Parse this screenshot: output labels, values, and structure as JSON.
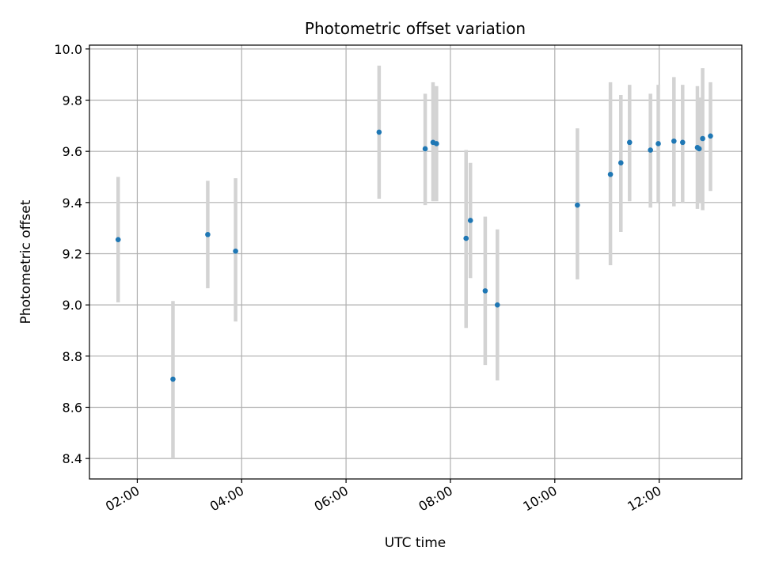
{
  "chart_data": {
    "type": "scatter",
    "title": "Photometric offset variation",
    "xlabel": "UTC time",
    "ylabel": "Photometric offset",
    "x_unit": "hours UTC",
    "xlim": [
      "01:05",
      "13:35"
    ],
    "ylim": [
      8.32,
      10.015
    ],
    "x_ticks": [
      "02:00",
      "04:00",
      "06:00",
      "08:00",
      "10:00",
      "12:00"
    ],
    "y_ticks": [
      "8.4",
      "8.6",
      "8.8",
      "9.0",
      "9.2",
      "9.4",
      "9.6",
      "9.8",
      "10.0"
    ],
    "grid": true,
    "marker_color": "#1f77b4",
    "errorbar_color": "#d3d3d3",
    "series": [
      {
        "points": [
          {
            "x": "01:38",
            "y": 9.255,
            "ylo": 9.01,
            "yhi": 9.5
          },
          {
            "x": "02:41",
            "y": 8.71,
            "ylo": 8.4,
            "yhi": 9.015
          },
          {
            "x": "03:21",
            "y": 9.275,
            "ylo": 9.065,
            "yhi": 9.485
          },
          {
            "x": "03:53",
            "y": 9.21,
            "ylo": 8.935,
            "yhi": 9.495
          },
          {
            "x": "06:38",
            "y": 9.675,
            "ylo": 9.415,
            "yhi": 9.935
          },
          {
            "x": "07:31",
            "y": 9.61,
            "ylo": 9.39,
            "yhi": 9.825
          },
          {
            "x": "07:40",
            "y": 9.635,
            "ylo": 9.405,
            "yhi": 9.87
          },
          {
            "x": "07:44",
            "y": 9.63,
            "ylo": 9.405,
            "yhi": 9.855
          },
          {
            "x": "08:18",
            "y": 9.26,
            "ylo": 8.91,
            "yhi": 9.605
          },
          {
            "x": "08:23",
            "y": 9.33,
            "ylo": 9.105,
            "yhi": 9.555
          },
          {
            "x": "08:40",
            "y": 9.055,
            "ylo": 8.765,
            "yhi": 9.345
          },
          {
            "x": "08:54",
            "y": 9.0,
            "ylo": 8.705,
            "yhi": 9.295
          },
          {
            "x": "10:26",
            "y": 9.39,
            "ylo": 9.1,
            "yhi": 9.69
          },
          {
            "x": "11:04",
            "y": 9.51,
            "ylo": 9.155,
            "yhi": 9.87
          },
          {
            "x": "11:16",
            "y": 9.555,
            "ylo": 9.285,
            "yhi": 9.82
          },
          {
            "x": "11:26",
            "y": 9.635,
            "ylo": 9.405,
            "yhi": 9.86
          },
          {
            "x": "11:50",
            "y": 9.605,
            "ylo": 9.38,
            "yhi": 9.825
          },
          {
            "x": "11:59",
            "y": 9.63,
            "ylo": 9.4,
            "yhi": 9.86
          },
          {
            "x": "12:17",
            "y": 9.64,
            "ylo": 9.385,
            "yhi": 9.89
          },
          {
            "x": "12:27",
            "y": 9.635,
            "ylo": 9.4,
            "yhi": 9.86
          },
          {
            "x": "12:44",
            "y": 9.615,
            "ylo": 9.375,
            "yhi": 9.855
          },
          {
            "x": "12:46",
            "y": 9.61,
            "ylo": 9.4,
            "yhi": 9.81
          },
          {
            "x": "12:50",
            "y": 9.65,
            "ylo": 9.37,
            "yhi": 9.925
          },
          {
            "x": "12:59",
            "y": 9.66,
            "ylo": 9.445,
            "yhi": 9.87
          }
        ]
      }
    ]
  }
}
